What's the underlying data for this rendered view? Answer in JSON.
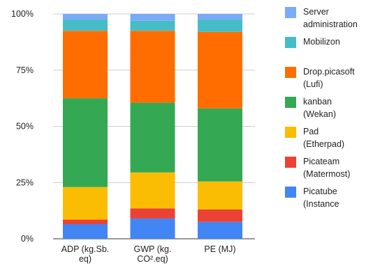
{
  "chart_data": {
    "type": "bar",
    "stacked": true,
    "normalized": true,
    "categories": [
      "ADP (kg.Sb.\neq)",
      "GWP (kg.\nCO².eq)",
      "PE (MJ)"
    ],
    "series": [
      {
        "name": "Picatube\n(Instance",
        "color": "#4285f4",
        "values": [
          6.5,
          9,
          7.5
        ]
      },
      {
        "name": "Picateam\n(Matermost)",
        "color": "#ea4335",
        "values": [
          2,
          4.5,
          5.5
        ]
      },
      {
        "name": "Pad\n(Etherpad)",
        "color": "#fbbc04",
        "values": [
          14.5,
          16,
          12.5
        ]
      },
      {
        "name": "kanban\n(Wekan)",
        "color": "#34a853",
        "values": [
          39.5,
          31,
          32.5
        ]
      },
      {
        "name": "Drop.picasoft\n(Lufi)",
        "color": "#ff6d01",
        "values": [
          30,
          32,
          34
        ]
      },
      {
        "name": "Mobilizon",
        "color": "#46bdc6",
        "values": [
          5,
          4.5,
          5.5
        ]
      },
      {
        "name": "Server\nadministration",
        "color": "#7baaf7",
        "values": [
          2.5,
          3,
          2.5
        ]
      }
    ],
    "yticks": [
      "0%",
      "25%",
      "50%",
      "75%",
      "100%"
    ],
    "ylim": [
      0,
      100
    ],
    "grid": true,
    "legend_position": "right"
  }
}
